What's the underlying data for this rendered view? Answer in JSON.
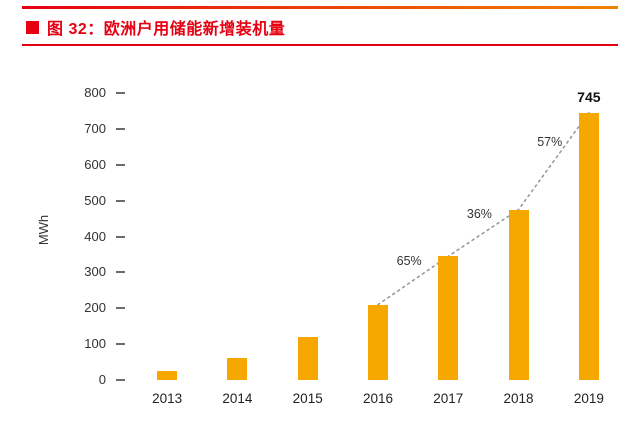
{
  "header": {
    "title": "图 32：欧洲户用储能新增装机量",
    "accent_color": "#e60012"
  },
  "chart_data": {
    "type": "bar",
    "title": "欧洲户用储能新增装机量",
    "categories": [
      "2013",
      "2014",
      "2015",
      "2016",
      "2017",
      "2018",
      "2019"
    ],
    "values": [
      25,
      60,
      120,
      210,
      345,
      475,
      745
    ],
    "xlabel": "",
    "ylabel": "MWh",
    "ylim": [
      0,
      800
    ],
    "ytick_step": 100,
    "grid": "off",
    "bar_color": "#f7a800",
    "trendline": {
      "style": "dotted",
      "from": "2016",
      "to": "2019",
      "color": "#999999"
    },
    "annotations": [
      {
        "between": [
          "2016",
          "2017"
        ],
        "label": "65%"
      },
      {
        "between": [
          "2017",
          "2018"
        ],
        "label": "36%"
      },
      {
        "between": [
          "2018",
          "2019"
        ],
        "label": "57%"
      }
    ],
    "value_labels": [
      {
        "category": "2019",
        "label": "745"
      }
    ]
  }
}
